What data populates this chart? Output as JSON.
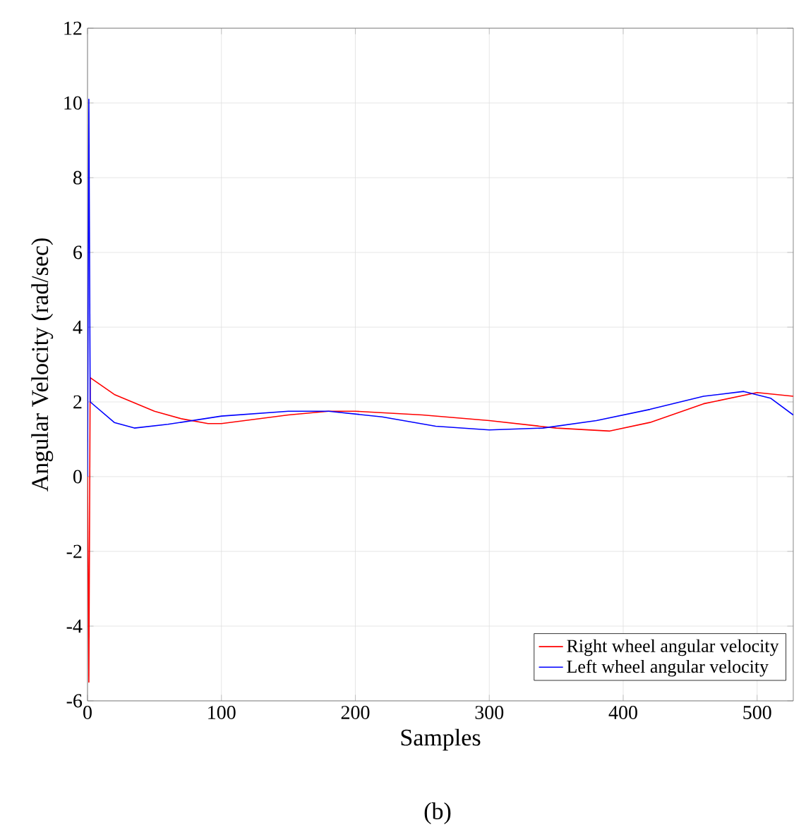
{
  "chart_data": {
    "type": "line",
    "xlabel": "Samples",
    "ylabel": "Angular Velocity (rad/sec)",
    "annotations": [
      "(b)"
    ],
    "xlim": [
      0,
      527
    ],
    "ylim": [
      -6,
      12
    ],
    "xticks": [
      0,
      100,
      200,
      300,
      400,
      500
    ],
    "yticks": [
      -6,
      -4,
      -2,
      0,
      2,
      4,
      6,
      8,
      10,
      12
    ],
    "grid": true,
    "legend": "bottom right",
    "line_style": "solid",
    "marker": "none",
    "series": [
      {
        "name": "Right wheel angular velocity",
        "color": "#ff0000",
        "x": [
          0,
          1,
          2,
          20,
          50,
          70,
          90,
          100,
          150,
          180,
          200,
          250,
          300,
          350,
          390,
          420,
          460,
          500,
          527
        ],
        "values": [
          0,
          -5.5,
          2.65,
          2.2,
          1.75,
          1.55,
          1.42,
          1.42,
          1.65,
          1.75,
          1.75,
          1.65,
          1.5,
          1.3,
          1.22,
          1.45,
          1.95,
          2.25,
          2.15
        ]
      },
      {
        "name": "Left wheel angular velocity",
        "color": "#0000ff",
        "x": [
          0,
          1,
          2,
          20,
          35,
          60,
          100,
          150,
          180,
          220,
          260,
          300,
          340,
          380,
          420,
          460,
          490,
          510,
          527
        ],
        "values": [
          0,
          10.1,
          2.0,
          1.45,
          1.3,
          1.4,
          1.62,
          1.75,
          1.75,
          1.6,
          1.35,
          1.25,
          1.3,
          1.5,
          1.8,
          2.15,
          2.28,
          2.1,
          1.65
        ]
      }
    ]
  }
}
